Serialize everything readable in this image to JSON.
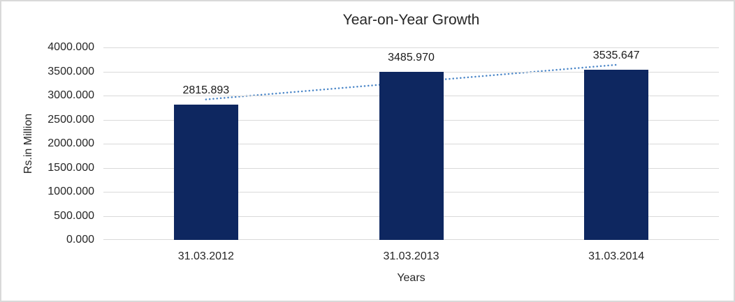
{
  "chart_data": {
    "type": "bar",
    "title": "Year-on-Year Growth",
    "categories": [
      "31.03.2012",
      "31.03.2013",
      "31.03.2014"
    ],
    "values": [
      2815.893,
      3485.97,
      3535.647
    ],
    "data_labels": [
      "2815.893",
      "3485.970",
      "3535.647"
    ],
    "xlabel": "Years",
    "ylabel": "Rs.in Million",
    "ylim": [
      0,
      4000
    ],
    "ytick_step": 500,
    "ytick_labels": [
      "0.000",
      "500.000",
      "1000.000",
      "1500.000",
      "2000.000",
      "2500.000",
      "3000.000",
      "3500.000",
      "4000.000"
    ],
    "grid": true,
    "legend": false,
    "trendline": {
      "type": "linear",
      "style": "dotted"
    },
    "colors": {
      "bar": "#0e2760",
      "trendline": "#4a86c8",
      "gridline": "#d9d9d9",
      "frame_border": "#d9d9d9",
      "text": "#262626",
      "background": "#ffffff"
    }
  }
}
